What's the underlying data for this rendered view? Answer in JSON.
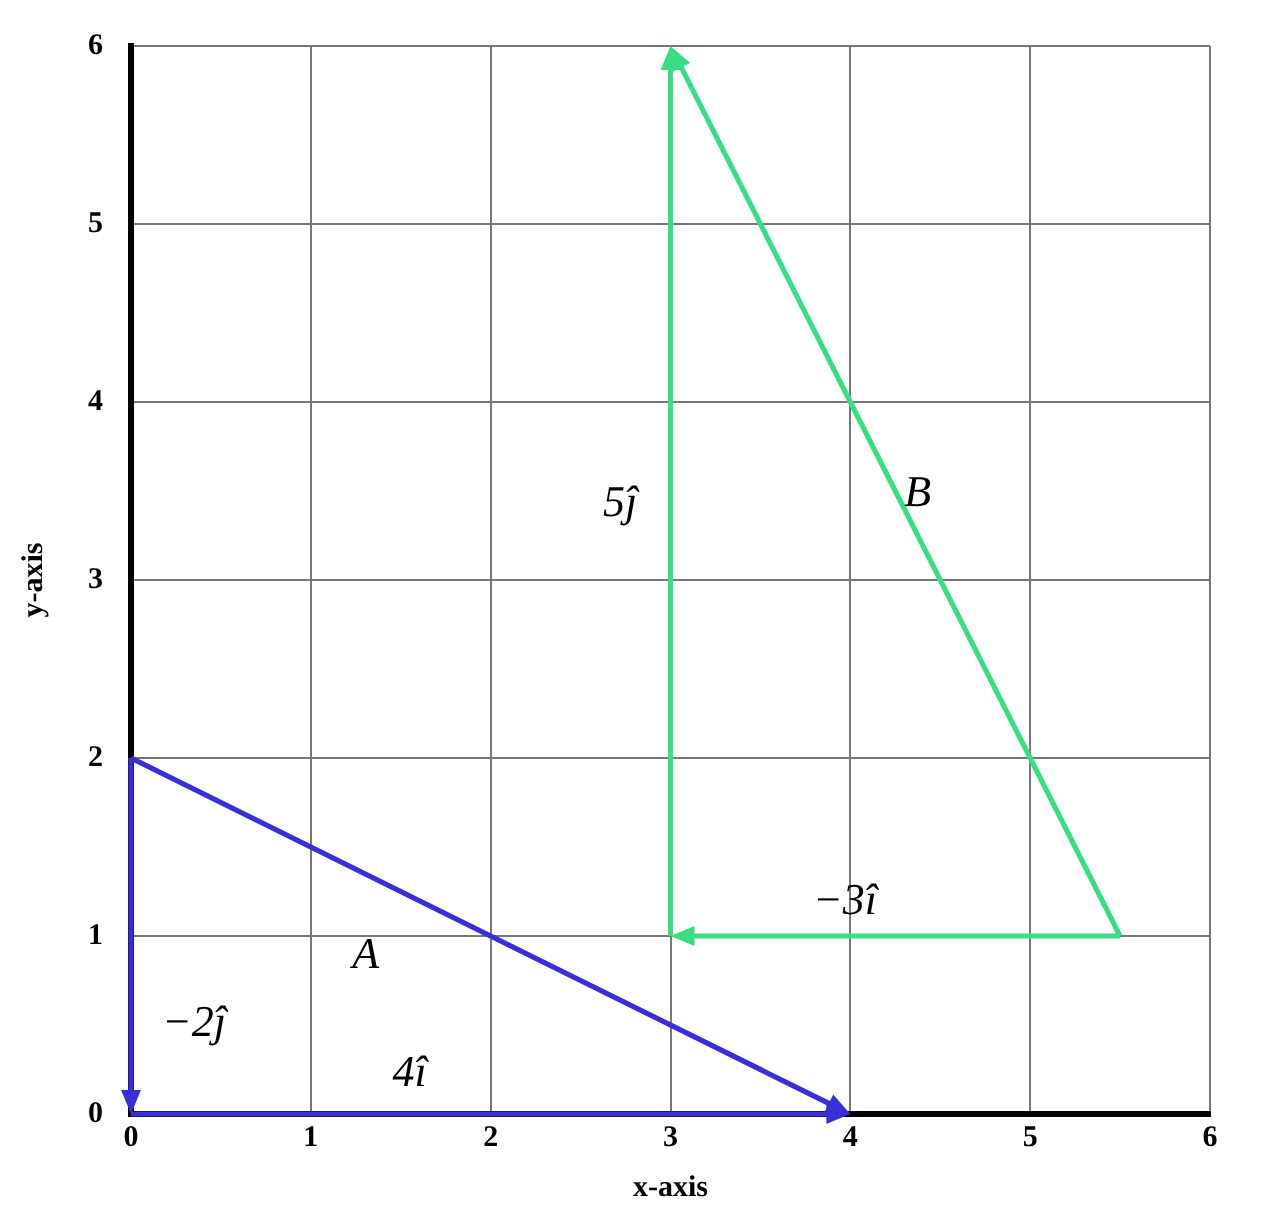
{
  "chart_data": {
    "type": "line",
    "xlabel": "x-axis",
    "ylabel": "y-axis",
    "xlim": [
      0,
      6
    ],
    "ylim": [
      0,
      6
    ],
    "xticks": [
      0,
      1,
      2,
      3,
      4,
      5,
      6
    ],
    "yticks": [
      0,
      1,
      2,
      3,
      4,
      5,
      6
    ],
    "grid": true,
    "legend": false,
    "annotations": [
      "A⃗",
      "−2ĵ",
      "4î",
      "5ĵ",
      "B⃗",
      "−3î"
    ]
  }
}
